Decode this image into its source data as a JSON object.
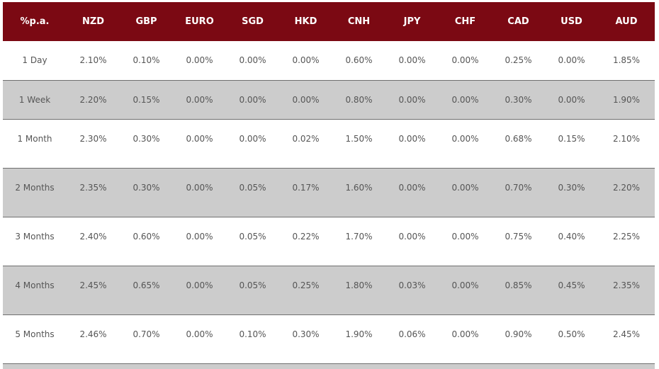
{
  "table": {
    "header": [
      "%p.a.",
      "NZD",
      "GBP",
      "EURO",
      "SGD",
      "HKD",
      "CNH",
      "JPY",
      "CHF",
      "CAD",
      "USD",
      "AUD"
    ],
    "rows": [
      {
        "period": "1 Day",
        "values": [
          "2.10%",
          "0.10%",
          "0.00%",
          "0.00%",
          "0.00%",
          "0.60%",
          "0.00%",
          "0.00%",
          "0.25%",
          "0.00%",
          "1.85%"
        ]
      },
      {
        "period": "1 Week",
        "values": [
          "2.20%",
          "0.15%",
          "0.00%",
          "0.00%",
          "0.00%",
          "0.80%",
          "0.00%",
          "0.00%",
          "0.30%",
          "0.00%",
          "1.90%"
        ]
      },
      {
        "period": "1 Month",
        "values": [
          "2.30%",
          "0.30%",
          "0.00%",
          "0.00%",
          "0.02%",
          "1.50%",
          "0.00%",
          "0.00%",
          "0.68%",
          "0.15%",
          "2.10%"
        ]
      },
      {
        "period": "2 Months",
        "values": [
          "2.35%",
          "0.30%",
          "0.00%",
          "0.05%",
          "0.17%",
          "1.60%",
          "0.00%",
          "0.00%",
          "0.70%",
          "0.30%",
          "2.20%"
        ]
      },
      {
        "period": "3 Months",
        "values": [
          "2.40%",
          "0.60%",
          "0.00%",
          "0.05%",
          "0.22%",
          "1.70%",
          "0.00%",
          "0.00%",
          "0.75%",
          "0.40%",
          "2.25%"
        ]
      },
      {
        "period": "4 Months",
        "values": [
          "2.45%",
          "0.65%",
          "0.00%",
          "0.05%",
          "0.25%",
          "1.80%",
          "0.03%",
          "0.00%",
          "0.85%",
          "0.45%",
          "2.35%"
        ]
      },
      {
        "period": "5 Months",
        "values": [
          "2.46%",
          "0.70%",
          "0.00%",
          "0.10%",
          "0.30%",
          "1.90%",
          "0.06%",
          "0.00%",
          "0.90%",
          "0.50%",
          "2.45%"
        ]
      }
    ]
  },
  "colors": {
    "header_bg": "#7b0913",
    "header_text": "#ffffff",
    "row_alt_bg": "#cccccc",
    "cell_text": "#555555"
  }
}
